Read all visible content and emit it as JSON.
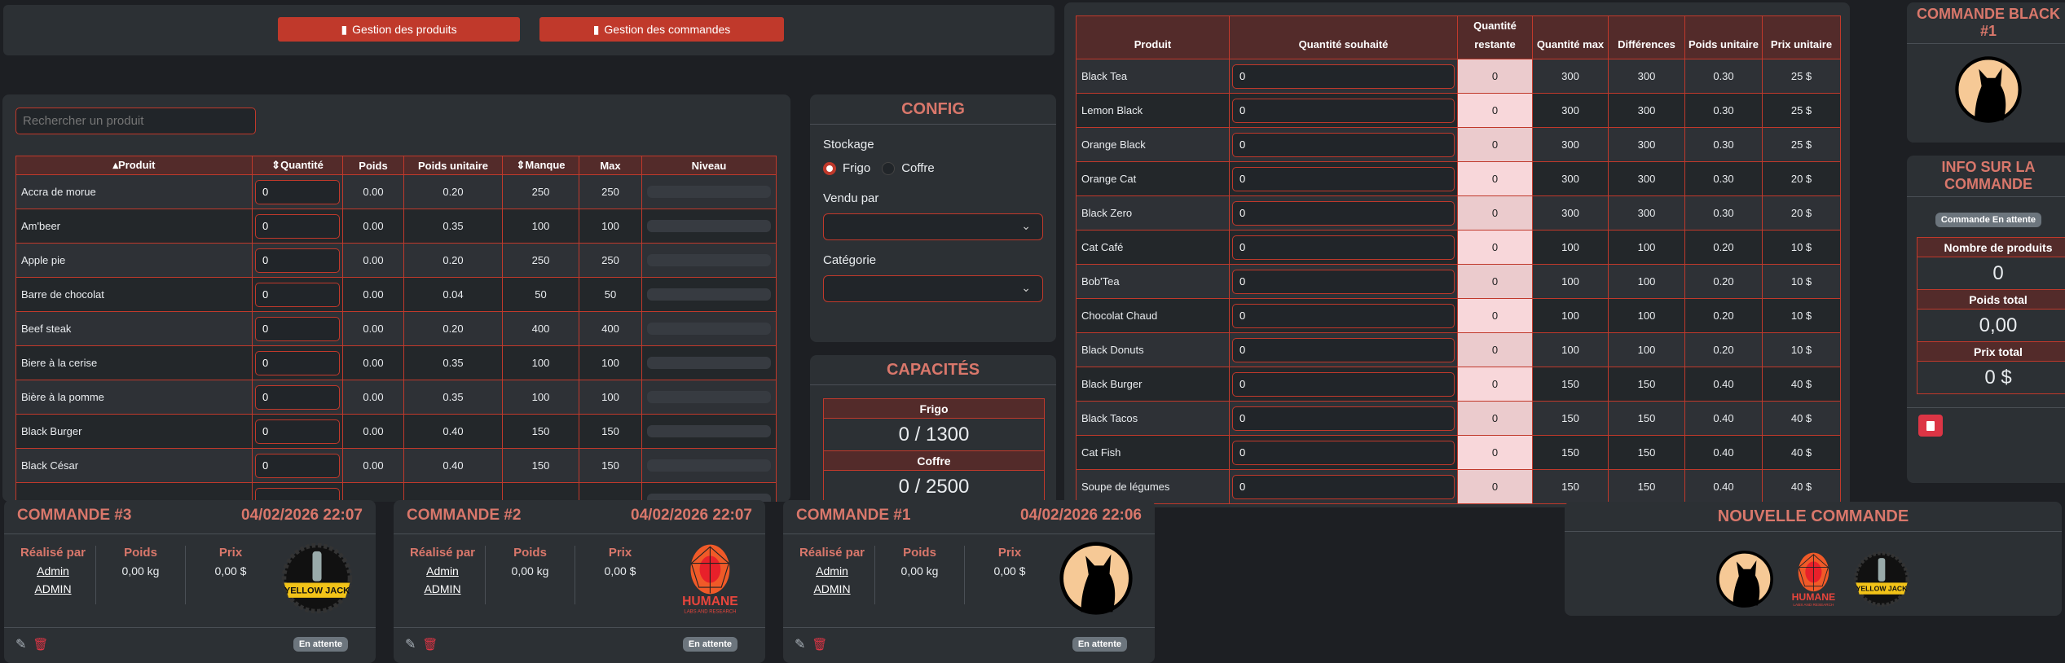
{
  "toolbar": {
    "products_label": "Gestion des produits",
    "orders_label": "Gestion des commandes"
  },
  "products": {
    "search_placeholder": "Rechercher un produit",
    "headers": [
      "Produit",
      "Quantité",
      "Poids",
      "Poids unitaire",
      "Manque",
      "Max",
      "Niveau"
    ],
    "rows": [
      {
        "name": "Accra de morue",
        "qty": "0",
        "poids": "0.00",
        "unit": "0.20",
        "manque": "250",
        "max": "250",
        "level": 0
      },
      {
        "name": "Am'beer",
        "qty": "0",
        "poids": "0.00",
        "unit": "0.35",
        "manque": "100",
        "max": "100",
        "level": 0
      },
      {
        "name": "Apple pie",
        "qty": "0",
        "poids": "0.00",
        "unit": "0.20",
        "manque": "250",
        "max": "250",
        "level": 0
      },
      {
        "name": "Barre de chocolat",
        "qty": "0",
        "poids": "0.00",
        "unit": "0.04",
        "manque": "50",
        "max": "50",
        "level": 0
      },
      {
        "name": "Beef steak",
        "qty": "0",
        "poids": "0.00",
        "unit": "0.20",
        "manque": "400",
        "max": "400",
        "level": 0
      },
      {
        "name": "Biere à la cerise",
        "qty": "0",
        "poids": "0.00",
        "unit": "0.35",
        "manque": "100",
        "max": "100",
        "level": 0
      },
      {
        "name": "Bière à la pomme",
        "qty": "0",
        "poids": "0.00",
        "unit": "0.35",
        "manque": "100",
        "max": "100",
        "level": 0
      },
      {
        "name": "Black Burger",
        "qty": "0",
        "poids": "0.00",
        "unit": "0.40",
        "manque": "150",
        "max": "150",
        "level": 0
      },
      {
        "name": "Black César",
        "qty": "0",
        "poids": "0.00",
        "unit": "0.40",
        "manque": "150",
        "max": "150",
        "level": 0
      }
    ]
  },
  "config": {
    "title": "CONFIG",
    "storage_label": "Stockage",
    "storage_options": [
      "Frigo",
      "Coffre"
    ],
    "storage_selected": "Frigo",
    "sold_by_label": "Vendu par",
    "sold_by_value": "",
    "category_label": "Catégorie",
    "category_value": ""
  },
  "capacities": {
    "title": "CAPACITÉS",
    "items": [
      {
        "label": "Frigo",
        "value": "0 / 1300"
      },
      {
        "label": "Coffre",
        "value": "0 / 2500"
      }
    ]
  },
  "order_table": {
    "headers": [
      "Produit",
      "Quantité souhaité",
      "Quantité restante",
      "Quantité max",
      "Différences",
      "Poids unitaire",
      "Prix unitaire"
    ],
    "rows": [
      [
        "Black Tea",
        "0",
        "0",
        "300",
        "300",
        "0.30",
        "25 $"
      ],
      [
        "Lemon Black",
        "0",
        "0",
        "300",
        "300",
        "0.30",
        "25 $"
      ],
      [
        "Orange Black",
        "0",
        "0",
        "300",
        "300",
        "0.30",
        "25 $"
      ],
      [
        "Orange Cat",
        "0",
        "0",
        "300",
        "300",
        "0.30",
        "20 $"
      ],
      [
        "Black Zero",
        "0",
        "0",
        "300",
        "300",
        "0.30",
        "20 $"
      ],
      [
        "Cat Café",
        "0",
        "0",
        "100",
        "100",
        "0.20",
        "10 $"
      ],
      [
        "Bob'Tea",
        "0",
        "0",
        "100",
        "100",
        "0.20",
        "10 $"
      ],
      [
        "Chocolat Chaud",
        "0",
        "0",
        "100",
        "100",
        "0.20",
        "10 $"
      ],
      [
        "Black Donuts",
        "0",
        "0",
        "100",
        "100",
        "0.20",
        "10 $"
      ],
      [
        "Black Burger",
        "0",
        "0",
        "150",
        "150",
        "0.40",
        "40 $"
      ],
      [
        "Black Tacos",
        "0",
        "0",
        "150",
        "150",
        "0.40",
        "40 $"
      ],
      [
        "Cat Fish",
        "0",
        "0",
        "150",
        "150",
        "0.40",
        "40 $"
      ],
      [
        "Soupe de légumes",
        "0",
        "0",
        "150",
        "150",
        "0.40",
        "40 $"
      ]
    ]
  },
  "current_order": {
    "title": "COMMANDE BLACK #1",
    "info_title": "INFO SUR LA COMMANDE",
    "status": "Commande En attente",
    "stats": [
      {
        "label": "Nombre de produits",
        "value": "0"
      },
      {
        "label": "Poids total",
        "value": "0,00"
      },
      {
        "label": "Prix total",
        "value": "0 $"
      }
    ]
  },
  "orders": [
    {
      "title": "COMMANDE #3",
      "date": "04/02/2026 22:07",
      "by_label": "Réalisé par",
      "by_name": "Admin",
      "by_role": "ADMIN",
      "weight_label": "Poids",
      "weight": "0,00 kg",
      "price_label": "Prix",
      "price": "0,00 $",
      "logo": "yellow-jack",
      "status": "En attente"
    },
    {
      "title": "COMMANDE #2",
      "date": "04/02/2026 22:07",
      "by_label": "Réalisé par",
      "by_name": "Admin",
      "by_role": "ADMIN",
      "weight_label": "Poids",
      "weight": "0,00 kg",
      "price_label": "Prix",
      "price": "0,00 $",
      "logo": "humane",
      "status": "En attente"
    },
    {
      "title": "COMMANDE #1",
      "date": "04/02/2026 22:06",
      "by_label": "Réalisé par",
      "by_name": "Admin",
      "by_role": "ADMIN",
      "weight_label": "Poids",
      "weight": "0,00 kg",
      "price_label": "Prix",
      "price": "0,00 $",
      "logo": "black-cat",
      "status": "En attente"
    }
  ],
  "new_order": {
    "title": "NOUVELLE COMMANDE",
    "logos": [
      "black-cat",
      "humane",
      "yellow-jack"
    ]
  },
  "logo_text": {
    "humane": "HUMANE",
    "humane_sub": "LABS AND RESEARCH",
    "yellow_jack": "YELLOW JACK"
  },
  "colors": {
    "accent": "#c0392b",
    "title": "#d9776b",
    "header_bg": "#532b2a",
    "danger": "#dc3545"
  }
}
